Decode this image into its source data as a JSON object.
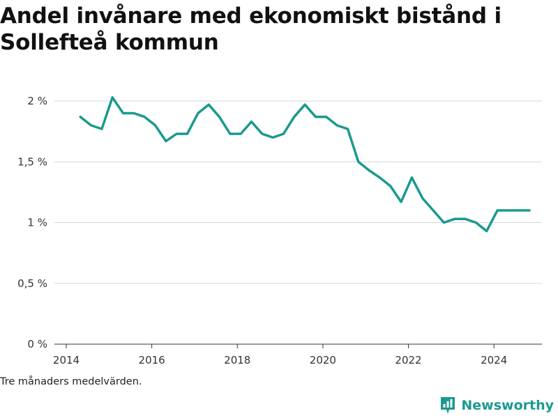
{
  "chart_data": {
    "type": "line",
    "title": "Andel invånare med ekonomiskt bistånd i Sollefteå kommun",
    "xlabel": "",
    "ylabel": "",
    "x_ticks": [
      2014,
      2016,
      2018,
      2020,
      2022,
      2024
    ],
    "x_tick_labels": [
      "2014",
      "2016",
      "2018",
      "2020",
      "2022",
      "2024"
    ],
    "y_ticks": [
      0,
      0.5,
      1,
      1.5,
      2
    ],
    "y_tick_labels": [
      "0 %",
      "0,5 %",
      "1 %",
      "1,5 %",
      "2 %"
    ],
    "xlim": [
      2014,
      2025.4
    ],
    "ylim": [
      0,
      2.1
    ],
    "grid": true,
    "line_color": "#1a9a8f",
    "series": [
      {
        "x": [
          2014.33,
          2014.58,
          2014.83,
          2015.08,
          2015.33,
          2015.58,
          2015.83,
          2016.08,
          2016.33,
          2016.58,
          2016.83,
          2017.08,
          2017.33,
          2017.58,
          2017.83,
          2018.08,
          2018.33,
          2018.58,
          2018.83,
          2019.08,
          2019.33,
          2019.58,
          2019.83,
          2020.08,
          2020.33,
          2020.58,
          2020.83,
          2021.08,
          2021.33,
          2021.58,
          2021.83,
          2022.08,
          2022.33,
          2022.58,
          2022.83,
          2023.08,
          2023.33,
          2023.58,
          2023.83,
          2024.08,
          2024.33,
          2024.58,
          2024.83
        ],
        "values": [
          1.87,
          1.8,
          1.77,
          2.03,
          1.9,
          1.9,
          1.87,
          1.8,
          1.67,
          1.73,
          1.73,
          1.9,
          1.97,
          1.87,
          1.73,
          1.73,
          1.83,
          1.73,
          1.7,
          1.73,
          1.87,
          1.97,
          1.87,
          1.87,
          1.8,
          1.77,
          1.5,
          1.43,
          1.37,
          1.3,
          1.17,
          1.37,
          1.2,
          1.1,
          1.0,
          1.03,
          1.03,
          1.0,
          0.93,
          1.1,
          1.1,
          1.1,
          1.1
        ]
      }
    ]
  },
  "note": "Tre månaders medelvärden.",
  "brand": {
    "name": "Newsworthy",
    "color": "#1a9a8f",
    "icon": "newsworthy-logo-icon"
  }
}
